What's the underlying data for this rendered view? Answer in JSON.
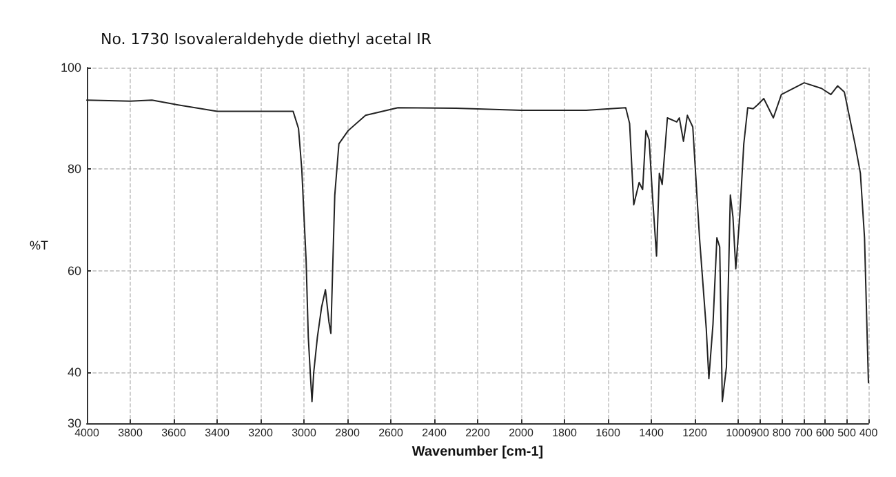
{
  "chart_data": {
    "type": "line",
    "title": "No. 1730 Isovaleraldehyde diethyl acetal IR",
    "xlabel": "Wavenumber [cm-1]",
    "ylabel": "%T",
    "xlim": [
      4000,
      400
    ],
    "ylim": [
      30,
      100
    ],
    "xticks": [
      4000,
      3800,
      3600,
      3400,
      3200,
      3000,
      2800,
      2600,
      2400,
      2200,
      2000,
      1800,
      1600,
      1400,
      1200,
      1000,
      900,
      800,
      700,
      600,
      500,
      400
    ],
    "yticks": [
      30,
      40,
      60,
      80,
      100
    ],
    "grid": true,
    "marker": "none",
    "line_style": "solid",
    "series": [
      {
        "color": "#222222",
        "x": [
          4000,
          3800,
          3700,
          3600,
          3400,
          3200,
          3050,
          3025,
          3010,
          2990,
          2980,
          2970,
          2963,
          2955,
          2938,
          2919,
          2901,
          2885,
          2876,
          2868,
          2858,
          2839,
          2796,
          2716,
          2567,
          2300,
          2000,
          1700,
          1518,
          1500,
          1481,
          1456,
          1440,
          1425,
          1410,
          1395,
          1376,
          1363,
          1350,
          1326,
          1283,
          1271,
          1252,
          1234,
          1209,
          1178,
          1147,
          1135,
          1116,
          1098,
          1085,
          1073,
          1054,
          1036,
          1024,
          1011,
          993,
          974,
          956,
          931,
          912,
          882,
          838,
          801,
          696,
          616,
          573,
          542,
          511,
          462,
          437,
          418,
          400
        ],
        "values": [
          93.6,
          93.4,
          93.6,
          92.8,
          91.4,
          91.4,
          91.4,
          88,
          80,
          62,
          47,
          39.3,
          34.3,
          40,
          47,
          52.8,
          56.3,
          50,
          47.7,
          60,
          74.9,
          85,
          87.6,
          90.6,
          92.1,
          92,
          91.6,
          91.6,
          92.1,
          89,
          73,
          77.4,
          76,
          87.6,
          85.8,
          75,
          62.9,
          79.2,
          77,
          90.1,
          89.3,
          90.1,
          85.5,
          90.6,
          88.3,
          66.5,
          48.7,
          38.8,
          49.5,
          66.5,
          64.7,
          34.3,
          41.1,
          74.9,
          70.6,
          60.4,
          70.6,
          85,
          92.1,
          91.9,
          92.6,
          93.9,
          90.1,
          94.7,
          97,
          95.9,
          94.7,
          96.4,
          95.2,
          85,
          79.2,
          66.5,
          38
        ]
      }
    ]
  }
}
